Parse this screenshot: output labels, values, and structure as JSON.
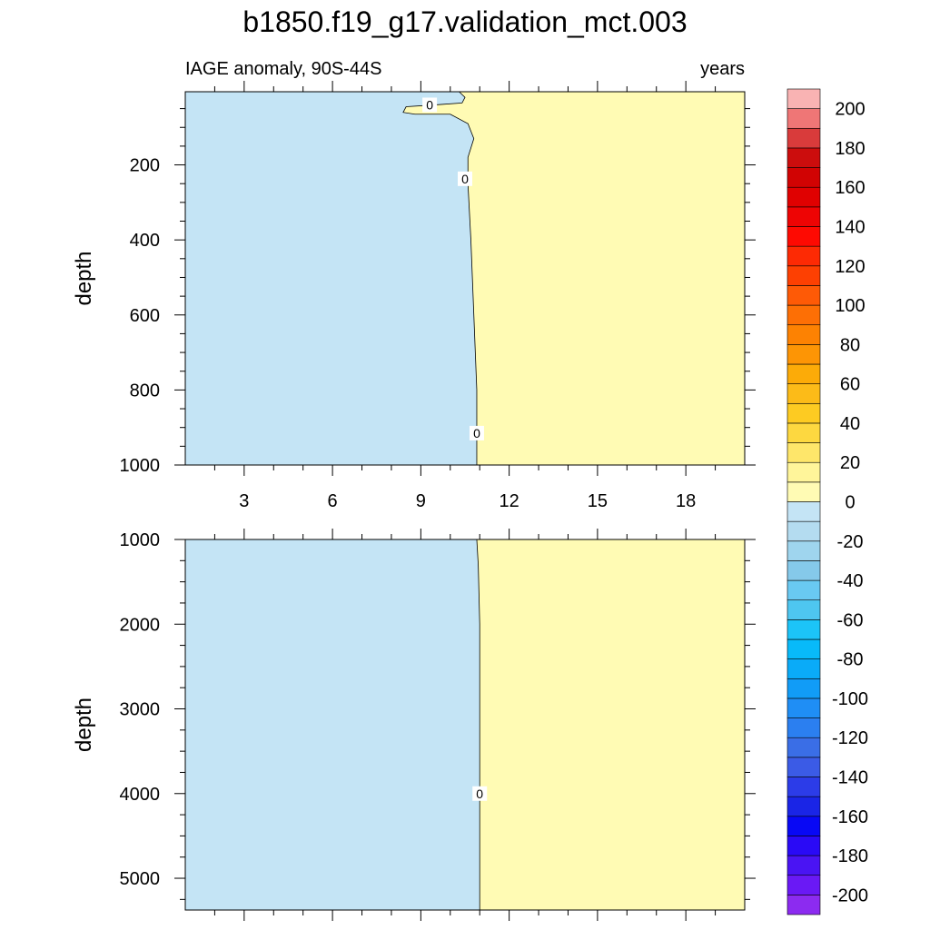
{
  "chart_data": {
    "type": "heatmap",
    "title": "b1850.f19_g17.validation_mct.003",
    "subtitle_left": "IAGE anomaly, 90S-44S",
    "units": "years",
    "xlim": [
      1,
      20
    ],
    "x_ticks": [
      3,
      6,
      9,
      12,
      15,
      18
    ],
    "x_tick_labels": [
      "3",
      "6",
      "9",
      "12",
      "15",
      "18"
    ],
    "panels": [
      {
        "id": "upper",
        "ylabel": "depth",
        "ylim": [
          5,
          1000
        ],
        "y_ticks": [
          200,
          400,
          600,
          800,
          1000
        ],
        "y_tick_labels": [
          "200",
          "400",
          "600",
          "800",
          "1000"
        ],
        "zero_contour": [
          [
            10.3,
            5
          ],
          [
            10.5,
            20
          ],
          [
            10.4,
            35
          ],
          [
            9.5,
            40
          ],
          [
            8.5,
            45
          ],
          [
            8.4,
            60
          ],
          [
            8.8,
            65
          ],
          [
            10.0,
            65
          ],
          [
            10.6,
            90
          ],
          [
            10.8,
            130
          ],
          [
            10.6,
            180
          ],
          [
            10.6,
            250
          ],
          [
            10.7,
            400
          ],
          [
            10.8,
            600
          ],
          [
            10.9,
            800
          ],
          [
            10.9,
            1000
          ]
        ],
        "contour_labels": [
          {
            "text": "0",
            "x": 9.3,
            "y": 40
          },
          {
            "text": "0",
            "x": 10.5,
            "y": 237
          },
          {
            "text": "0",
            "x": 10.9,
            "y": 915
          }
        ]
      },
      {
        "id": "lower",
        "ylabel": "depth",
        "ylim": [
          1000,
          5375
        ],
        "y_ticks": [
          1000,
          2000,
          3000,
          4000,
          5000
        ],
        "y_tick_labels": [
          "1000",
          "2000",
          "3000",
          "4000",
          "5000"
        ],
        "zero_contour": [
          [
            10.9,
            1000
          ],
          [
            10.95,
            1300
          ],
          [
            11.0,
            2000
          ],
          [
            11.0,
            3000
          ],
          [
            11.0,
            4000
          ],
          [
            11.0,
            5000
          ],
          [
            11.0,
            5375
          ]
        ],
        "contour_labels": [
          {
            "text": "0",
            "x": 11.0,
            "y": 4000
          }
        ]
      }
    ],
    "fill_negative": "#c4e4f5",
    "fill_positive": "#fffbb4",
    "colorbar": {
      "levels": [
        -210,
        -200,
        -190,
        -180,
        -170,
        -160,
        -150,
        -140,
        -130,
        -120,
        -110,
        -100,
        -90,
        -80,
        -70,
        -60,
        -50,
        -40,
        -30,
        -20,
        -10,
        0,
        10,
        20,
        30,
        40,
        50,
        60,
        70,
        80,
        90,
        100,
        110,
        120,
        130,
        140,
        150,
        160,
        170,
        180,
        190,
        200,
        210
      ],
      "colors": [
        "#8c2bf0",
        "#6a19f5",
        "#4a14f3",
        "#2a0af6",
        "#0808f5",
        "#1a25e6",
        "#2c3ce8",
        "#3b5be6",
        "#3a6ee6",
        "#2b7ff0",
        "#1f8ef5",
        "#119cf7",
        "#0aabf8",
        "#08baf9",
        "#1cc4f8",
        "#4ec6f0",
        "#69c9f2",
        "#85c9ea",
        "#9fd5ee",
        "#b4dcf0",
        "#c4e4f5",
        "#fffbb4",
        "#fff59a",
        "#fee66a",
        "#fdd840",
        "#fdcb22",
        "#fcbb18",
        "#fcab08",
        "#fd9505",
        "#fd8202",
        "#fd6f05",
        "#fe5a06",
        "#fd4002",
        "#fd2a04",
        "#fe0a02",
        "#ee0404",
        "#e00101",
        "#d10303",
        "#cc0d0d",
        "#d93b3b",
        "#ef7676",
        "#f9b3b3"
      ],
      "tick_values": [
        200,
        180,
        160,
        140,
        120,
        100,
        80,
        60,
        40,
        20,
        0,
        -20,
        -40,
        -60,
        -80,
        -100,
        -120,
        -140,
        -160,
        -180,
        -200
      ],
      "tick_labels": [
        "200",
        "180",
        "160",
        "140",
        "120",
        "100",
        "80",
        "60",
        "40",
        "20",
        "0",
        "-20",
        "-40",
        "-60",
        "-80",
        "-100",
        "-120",
        "-140",
        "-160",
        "-180",
        "-200"
      ]
    }
  }
}
